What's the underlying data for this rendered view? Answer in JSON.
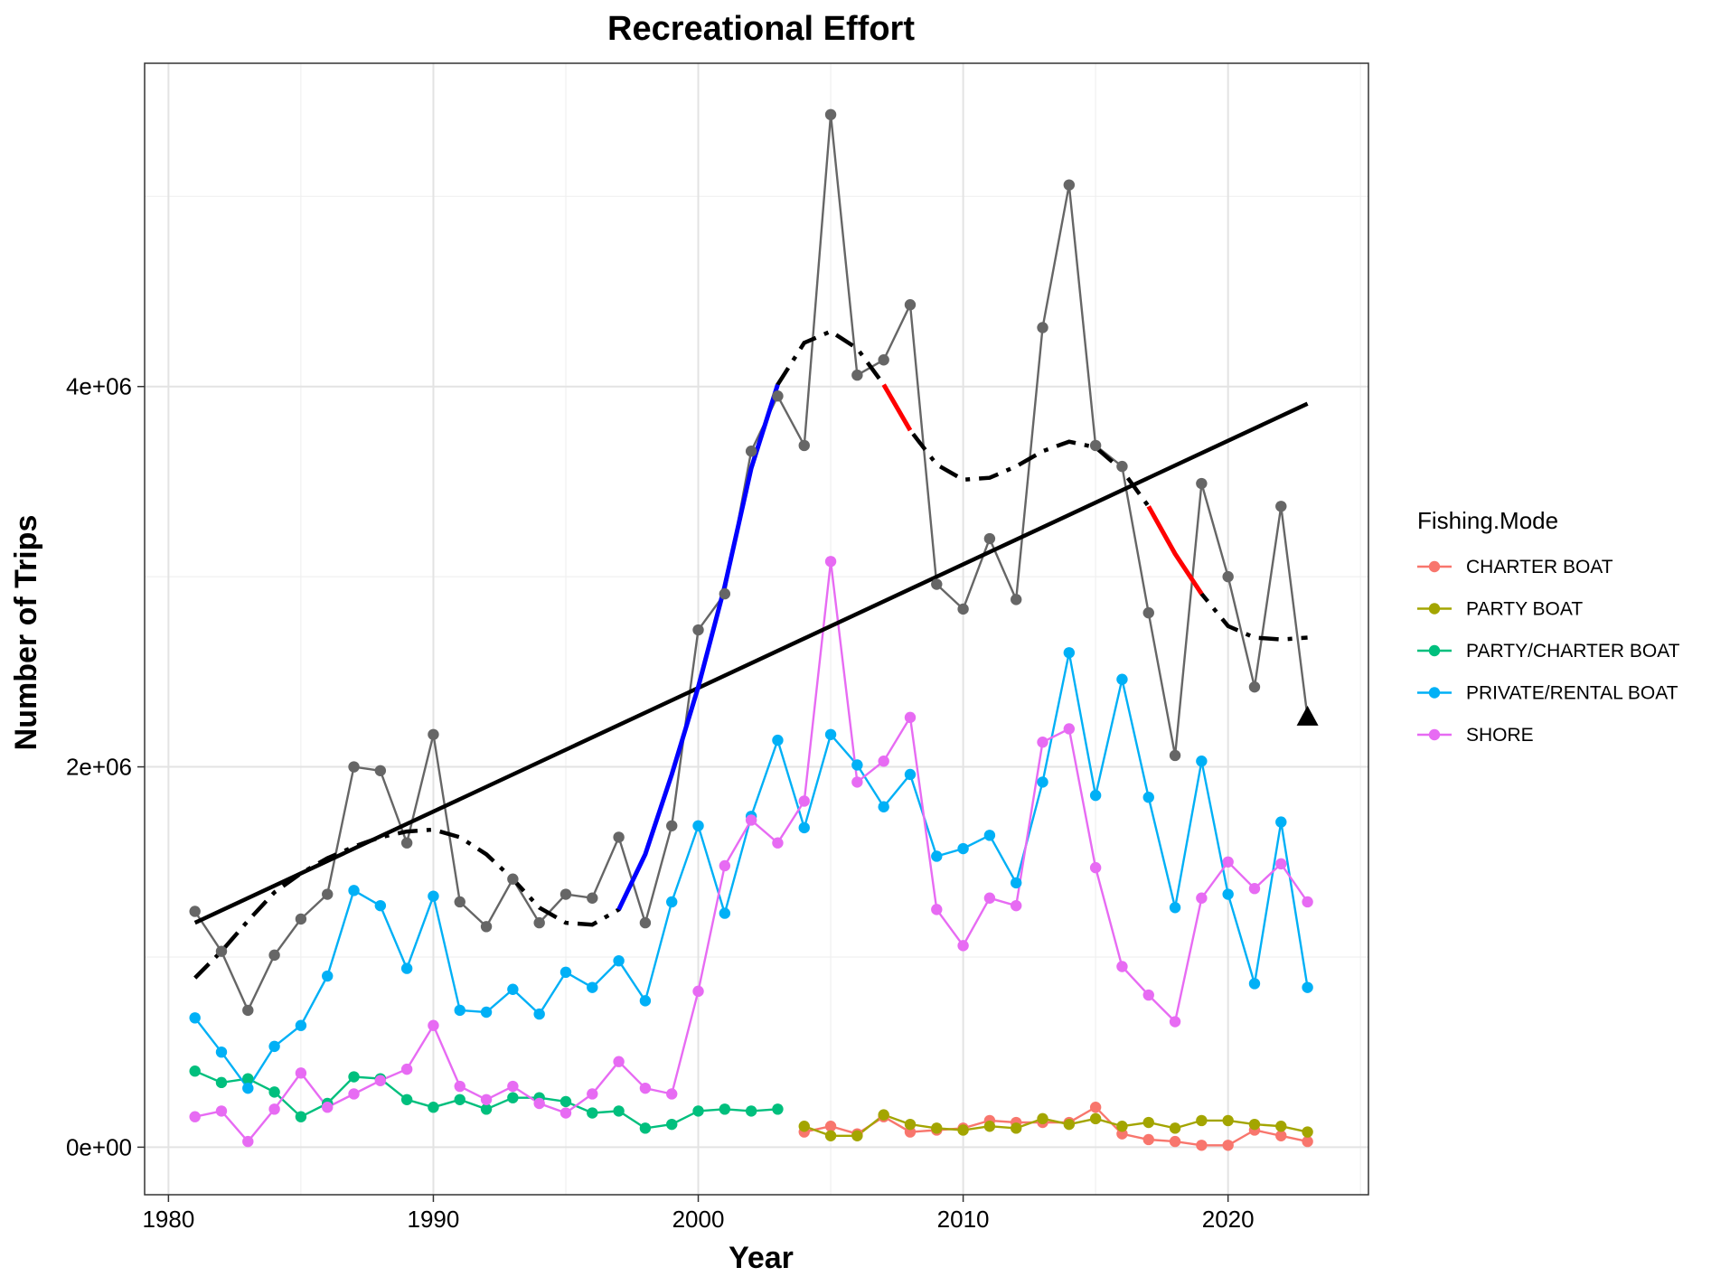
{
  "chart_data": {
    "type": "line",
    "title": "Recreational Effort",
    "xlabel": "Year",
    "ylabel": "Number of Trips",
    "xlim": [
      1979.1,
      2025.3
    ],
    "ylim": [
      -250000,
      5700000
    ],
    "x_ticks": [
      1980,
      1990,
      2000,
      2010,
      2020
    ],
    "x_tick_labels": [
      "1980",
      "1990",
      "2000",
      "2010",
      "2020"
    ],
    "y_ticks": [
      0,
      2000000,
      4000000
    ],
    "y_tick_labels": [
      "0e+00",
      "2e+06",
      "4e+06"
    ],
    "grid": true,
    "legend": {
      "title": "Fishing.Mode",
      "placement": "right",
      "entries": [
        "CHARTER BOAT",
        "PARTY BOAT",
        "PARTY/CHARTER BOAT",
        "PRIVATE/RENTAL BOAT",
        "SHORE"
      ]
    },
    "series": [
      {
        "name": "CHARTER BOAT",
        "color": "#F8766D",
        "x": [
          2004,
          2005,
          2006,
          2007,
          2008,
          2009,
          2010,
          2011,
          2012,
          2013,
          2014,
          2015,
          2016,
          2017,
          2018,
          2019,
          2020,
          2021,
          2022,
          2023
        ],
        "y": [
          80000,
          110000,
          70000,
          160000,
          80000,
          90000,
          100000,
          140000,
          130000,
          130000,
          130000,
          210000,
          70000,
          40000,
          30000,
          10000,
          10000,
          90000,
          60000,
          30000
        ]
      },
      {
        "name": "PARTY BOAT",
        "color": "#A3A500",
        "x": [
          2004,
          2005,
          2006,
          2007,
          2008,
          2009,
          2010,
          2011,
          2012,
          2013,
          2014,
          2015,
          2016,
          2017,
          2018,
          2019,
          2020,
          2021,
          2022,
          2023
        ],
        "y": [
          110000,
          60000,
          60000,
          170000,
          120000,
          100000,
          90000,
          110000,
          100000,
          150000,
          120000,
          150000,
          110000,
          130000,
          100000,
          140000,
          140000,
          120000,
          110000,
          80000
        ]
      },
      {
        "name": "PARTY/CHARTER BOAT",
        "color": "#00BF7D",
        "x": [
          1981,
          1982,
          1983,
          1984,
          1985,
          1986,
          1987,
          1988,
          1989,
          1990,
          1991,
          1992,
          1993,
          1994,
          1995,
          1996,
          1997,
          1998,
          1999,
          2000,
          2001,
          2002,
          2003
        ],
        "y": [
          400000,
          340000,
          360000,
          290000,
          160000,
          230000,
          370000,
          360000,
          250000,
          210000,
          250000,
          200000,
          260000,
          260000,
          240000,
          180000,
          190000,
          100000,
          120000,
          190000,
          200000,
          190000,
          200000
        ]
      },
      {
        "name": "PRIVATE/RENTAL BOAT",
        "color": "#00B0F6",
        "x": [
          1981,
          1982,
          1983,
          1984,
          1985,
          1986,
          1987,
          1988,
          1989,
          1990,
          1991,
          1992,
          1993,
          1994,
          1995,
          1996,
          1997,
          1998,
          1999,
          2000,
          2001,
          2002,
          2003,
          2004,
          2005,
          2006,
          2007,
          2008,
          2009,
          2010,
          2011,
          2012,
          2013,
          2014,
          2015,
          2016,
          2017,
          2018,
          2019,
          2020,
          2021,
          2022,
          2023
        ],
        "y": [
          680000,
          500000,
          310000,
          530000,
          640000,
          900000,
          1350000,
          1270000,
          940000,
          1320000,
          720000,
          710000,
          830000,
          700000,
          920000,
          840000,
          980000,
          770000,
          1290000,
          1690000,
          1230000,
          1740000,
          2140000,
          1680000,
          2170000,
          2010000,
          1790000,
          1960000,
          1530000,
          1570000,
          1640000,
          1390000,
          1920000,
          2600000,
          1850000,
          2460000,
          1840000,
          1260000,
          2030000,
          1330000,
          860000,
          1710000,
          840000
        ]
      },
      {
        "name": "SHORE",
        "color": "#E76BF3",
        "x": [
          1981,
          1982,
          1983,
          1984,
          1985,
          1986,
          1987,
          1988,
          1989,
          1990,
          1991,
          1992,
          1993,
          1994,
          1995,
          1996,
          1997,
          1998,
          1999,
          2000,
          2001,
          2002,
          2003,
          2004,
          2005,
          2006,
          2007,
          2008,
          2009,
          2010,
          2011,
          2012,
          2013,
          2014,
          2015,
          2016,
          2017,
          2018,
          2019,
          2020,
          2021,
          2022,
          2023
        ],
        "y": [
          160000,
          190000,
          30000,
          200000,
          390000,
          210000,
          280000,
          350000,
          410000,
          640000,
          320000,
          250000,
          320000,
          230000,
          180000,
          280000,
          450000,
          310000,
          280000,
          820000,
          1480000,
          1720000,
          1600000,
          1820000,
          3080000,
          1920000,
          2030000,
          2260000,
          1250000,
          1060000,
          1310000,
          1270000,
          2130000,
          2200000,
          1470000,
          950000,
          800000,
          660000,
          1310000,
          1500000,
          1360000,
          1490000,
          1290000
        ]
      },
      {
        "name": "",
        "color": "#666666",
        "x": [
          1981,
          1982,
          1983,
          1984,
          1985,
          1986,
          1987,
          1988,
          1989,
          1990,
          1991,
          1992,
          1993,
          1994,
          1995,
          1996,
          1997,
          1998,
          1999,
          2000,
          2001,
          2002,
          2003,
          2004,
          2005,
          2006,
          2007,
          2008,
          2009,
          2010,
          2011,
          2012,
          2013,
          2014,
          2015,
          2016,
          2017,
          2018,
          2019,
          2020,
          2021,
          2022,
          2023
        ],
        "y": [
          1240000,
          1030000,
          720000,
          1010000,
          1200000,
          1330000,
          2000000,
          1980000,
          1600000,
          2170000,
          1290000,
          1160000,
          1410000,
          1180000,
          1330000,
          1310000,
          1630000,
          1180000,
          1690000,
          2720000,
          2910000,
          3660000,
          3950000,
          3690000,
          5430000,
          4060000,
          4140000,
          4430000,
          2960000,
          2830000,
          3200000,
          2880000,
          4310000,
          5060000,
          3690000,
          3580000,
          2810000,
          2060000,
          3490000,
          3000000,
          2420000,
          3370000,
          2260000
        ]
      }
    ],
    "trend_line": {
      "color": "#000000",
      "x": [
        1981,
        2023
      ],
      "y": [
        1180000,
        3910000
      ]
    },
    "smooth_curve": {
      "color": "#000000",
      "style": "dashed",
      "x": [
        1981,
        1982,
        1983,
        1984,
        1985,
        1986,
        1987,
        1988,
        1989,
        1990,
        1991,
        1992,
        1993,
        1994,
        1995,
        1996,
        1997,
        1998,
        1999,
        2000,
        2001,
        2002,
        2003,
        2004,
        2005,
        2006,
        2007,
        2008,
        2009,
        2010,
        2011,
        2012,
        2013,
        2014,
        2015,
        2016,
        2017,
        2018,
        2019,
        2020,
        2021,
        2022,
        2023
      ],
      "y": [
        890000,
        1030000,
        1190000,
        1340000,
        1440000,
        1520000,
        1580000,
        1630000,
        1660000,
        1670000,
        1630000,
        1540000,
        1410000,
        1260000,
        1180000,
        1170000,
        1250000,
        1540000,
        1960000,
        2420000,
        2950000,
        3570000,
        4010000,
        4230000,
        4290000,
        4200000,
        4010000,
        3770000,
        3590000,
        3510000,
        3520000,
        3580000,
        3660000,
        3710000,
        3680000,
        3560000,
        3370000,
        3120000,
        2910000,
        2740000,
        2680000,
        2670000,
        2680000
      ]
    },
    "increase_segments": {
      "color": "#0000FF",
      "ranges": [
        [
          1997,
          2003
        ]
      ]
    },
    "decrease_segments": {
      "color": "#FF0000",
      "ranges": [
        [
          2007,
          2008
        ],
        [
          2017,
          2019
        ]
      ]
    },
    "last_point_marker": {
      "shape": "triangle",
      "color": "#000000",
      "x": 2023,
      "y": 2260000
    }
  }
}
